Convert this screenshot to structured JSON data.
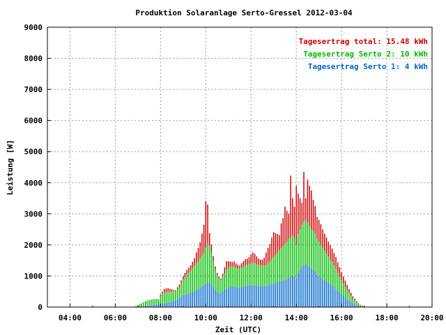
{
  "chart_data": {
    "type": "bar",
    "title": "Produktion Solaranlage Serto-Gressel 2012-03-04",
    "xlabel": "Zeit (UTC)",
    "ylabel": "Leistung [W]",
    "ylim": [
      0,
      9000
    ],
    "xlim": [
      "03:00",
      "20:00"
    ],
    "xticks": [
      "04:00",
      "06:00",
      "08:00",
      "10:00",
      "12:00",
      "14:00",
      "16:00",
      "18:00",
      "20:00"
    ],
    "yticks": [
      "0",
      "1000",
      "2000",
      "3000",
      "4000",
      "5000",
      "6000",
      "7000",
      "8000",
      "9000"
    ],
    "grid": true,
    "stacked": true,
    "legend_position": "top-right",
    "legend": [
      {
        "text": "Tagesertrag total: 15.48 kWh",
        "color": "#cc0000"
      },
      {
        "text": "Tagesertrag Serto 2: 10 kWh",
        "color": "#00bb00"
      },
      {
        "text": "Tagesertrag Serto 1: 4 kWh",
        "color": "#0066cc"
      }
    ],
    "x": [
      "06:45",
      "06:55",
      "07:00",
      "07:05",
      "07:10",
      "07:15",
      "07:20",
      "07:25",
      "07:30",
      "07:35",
      "07:40",
      "07:45",
      "07:50",
      "07:55",
      "08:00",
      "08:05",
      "08:10",
      "08:15",
      "08:20",
      "08:25",
      "08:30",
      "08:35",
      "08:40",
      "08:45",
      "08:50",
      "08:55",
      "09:00",
      "09:05",
      "09:10",
      "09:15",
      "09:20",
      "09:25",
      "09:30",
      "09:35",
      "09:40",
      "09:45",
      "09:50",
      "09:55",
      "10:00",
      "10:05",
      "10:10",
      "10:15",
      "10:20",
      "10:25",
      "10:30",
      "10:35",
      "10:40",
      "10:45",
      "10:50",
      "10:55",
      "11:00",
      "11:05",
      "11:10",
      "11:15",
      "11:20",
      "11:25",
      "11:30",
      "11:35",
      "11:40",
      "11:45",
      "11:50",
      "11:55",
      "12:00",
      "12:05",
      "12:10",
      "12:15",
      "12:20",
      "12:25",
      "12:30",
      "12:35",
      "12:40",
      "12:45",
      "12:50",
      "12:55",
      "13:00",
      "13:05",
      "13:10",
      "13:15",
      "13:20",
      "13:25",
      "13:30",
      "13:35",
      "13:40",
      "13:45",
      "13:50",
      "13:55",
      "14:00",
      "14:05",
      "14:10",
      "14:15",
      "14:20",
      "14:25",
      "14:30",
      "14:35",
      "14:40",
      "14:45",
      "14:50",
      "14:55",
      "15:00",
      "15:05",
      "15:10",
      "15:15",
      "15:20",
      "15:25",
      "15:30",
      "15:35",
      "15:40",
      "15:45",
      "15:50",
      "15:55",
      "16:00",
      "16:05",
      "16:10",
      "16:15",
      "16:20",
      "16:25",
      "16:30",
      "16:35",
      "16:40",
      "16:45",
      "16:50",
      "16:55",
      "17:00",
      "17:05",
      "17:10"
    ],
    "series": [
      {
        "name": "Tagesertrag Serto 1: 4 kWh",
        "color": "#0066cc",
        "values": [
          5,
          10,
          15,
          20,
          25,
          30,
          40,
          45,
          50,
          60,
          70,
          80,
          90,
          100,
          110,
          120,
          130,
          140,
          150,
          160,
          170,
          190,
          220,
          260,
          300,
          340,
          380,
          400,
          420,
          440,
          470,
          500,
          520,
          560,
          580,
          620,
          660,
          700,
          760,
          800,
          780,
          720,
          640,
          560,
          500,
          440,
          450,
          520,
          560,
          600,
          620,
          640,
          650,
          660,
          640,
          620,
          620,
          640,
          660,
          680,
          690,
          700,
          700,
          700,
          690,
          680,
          680,
          680,
          680,
          680,
          690,
          700,
          720,
          740,
          760,
          780,
          800,
          820,
          840,
          860,
          880,
          900,
          950,
          980,
          1000,
          980,
          900,
          1100,
          1200,
          1300,
          1350,
          1400,
          1350,
          1300,
          1250,
          1200,
          1150,
          1050,
          1000,
          960,
          900,
          860,
          820,
          780,
          740,
          700,
          640,
          580,
          520,
          480,
          420,
          360,
          300,
          250,
          200,
          160,
          120,
          90,
          60,
          40,
          20,
          12,
          6,
          3,
          1
        ]
      },
      {
        "name": "Tagesertrag Serto 2: 10 kWh",
        "color": "#00bb00",
        "values": [
          10,
          30,
          50,
          80,
          100,
          130,
          150,
          170,
          180,
          180,
          180,
          180,
          180,
          150,
          250,
          300,
          330,
          340,
          340,
          330,
          320,
          310,
          300,
          320,
          350,
          420,
          500,
          560,
          620,
          660,
          700,
          760,
          800,
          850,
          900,
          950,
          1000,
          1050,
          1150,
          1250,
          1200,
          1050,
          850,
          650,
          520,
          480,
          420,
          480,
          520,
          600,
          650,
          660,
          650,
          640,
          620,
          620,
          620,
          630,
          640,
          660,
          670,
          680,
          700,
          720,
          720,
          700,
          680,
          660,
          650,
          650,
          660,
          700,
          750,
          800,
          850,
          900,
          950,
          1000,
          1050,
          1100,
          1150,
          1200,
          1250,
          1250,
          1300,
          1250,
          1100,
          1250,
          1300,
          1350,
          1400,
          1400,
          1350,
          1300,
          1250,
          1250,
          1200,
          1150,
          1100,
          1050,
          1000,
          950,
          900,
          850,
          800,
          750,
          700,
          650,
          580,
          500,
          450,
          400,
          350,
          300,
          250,
          200,
          150,
          120,
          90,
          60,
          40,
          20,
          12,
          6,
          1
        ]
      },
      {
        "name": "Tagesertrag total: 15.48 kWh",
        "color": "#cc0000",
        "values": [
          0,
          0,
          0,
          0,
          0,
          0,
          0,
          0,
          0,
          0,
          0,
          0,
          0,
          0,
          50,
          80,
          120,
          120,
          120,
          100,
          80,
          50,
          30,
          60,
          80,
          100,
          120,
          140,
          160,
          170,
          180,
          200,
          260,
          350,
          420,
          520,
          700,
          900,
          1500,
          1250,
          400,
          250,
          150,
          100,
          80,
          60,
          50,
          80,
          200,
          280,
          200,
          160,
          150,
          170,
          150,
          120,
          100,
          140,
          180,
          200,
          200,
          230,
          300,
          340,
          300,
          250,
          200,
          180,
          200,
          260,
          400,
          500,
          550,
          700,
          800,
          700,
          600,
          500,
          800,
          900,
          1200,
          1000,
          800,
          2000,
          1200,
          1000,
          1900,
          1300,
          1000,
          700,
          1600,
          700,
          1400,
          1300,
          1250,
          1000,
          900,
          700,
          700,
          650,
          600,
          550,
          520,
          480,
          460,
          430,
          400,
          380,
          340,
          300,
          260,
          220,
          200,
          160,
          130,
          100,
          80,
          60,
          40,
          25,
          15,
          8,
          4,
          2,
          1
        ]
      }
    ]
  }
}
